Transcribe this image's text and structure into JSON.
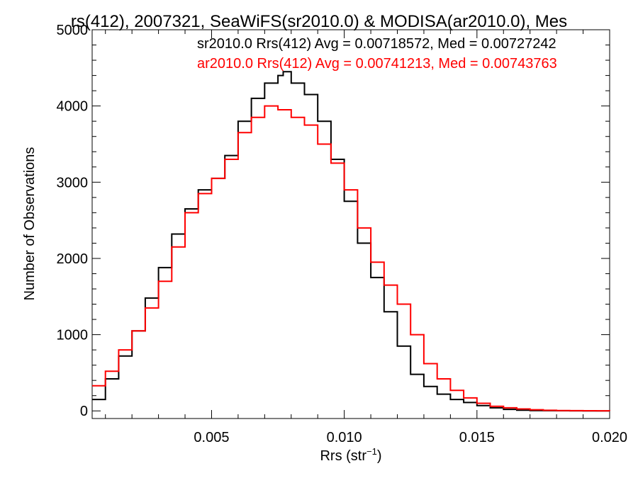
{
  "chart_data": {
    "type": "line",
    "title": "rs(412), 2007321, SeaWiFS(sr2010.0) & MODISA(ar2010.0), Mes",
    "xlabel": "Rrs (str",
    "xlabel_superscript": "−1",
    "xlabel_suffix": ")",
    "ylabel": "Number of Observations",
    "xlim": [
      0.0005,
      0.02
    ],
    "ylim": [
      -100,
      5000
    ],
    "x_ticks": [
      0.005,
      0.01,
      0.015,
      0.02
    ],
    "x_tick_labels": [
      "0.005",
      "0.010",
      "0.015",
      "0.020"
    ],
    "y_ticks": [
      0,
      1000,
      2000,
      3000,
      4000,
      5000
    ],
    "y_tick_labels": [
      "0",
      "1000",
      "2000",
      "3000",
      "4000",
      "5000"
    ],
    "grid": false,
    "legend_placement": "top-right",
    "series": [
      {
        "name": "sr2010.0",
        "legend_text": "sr2010.0 Rrs(412) Avg = 0.00718572, Med = 0.00727242",
        "color": "#000000",
        "x": [
          0.0005,
          0.001,
          0.0015,
          0.002,
          0.0025,
          0.003,
          0.0035,
          0.004,
          0.0045,
          0.005,
          0.0055,
          0.006,
          0.0065,
          0.007,
          0.0075,
          0.0077,
          0.008,
          0.0085,
          0.009,
          0.0095,
          0.01,
          0.0105,
          0.011,
          0.0115,
          0.012,
          0.0125,
          0.013,
          0.0135,
          0.014,
          0.0145,
          0.015,
          0.0155,
          0.016,
          0.0165,
          0.017,
          0.0175,
          0.018,
          0.0185,
          0.019,
          0.0195,
          0.02
        ],
        "y": [
          150,
          420,
          720,
          1050,
          1480,
          1880,
          2320,
          2650,
          2900,
          3050,
          3350,
          3800,
          4100,
          4300,
          4400,
          4450,
          4300,
          4150,
          3800,
          3300,
          2750,
          2200,
          1750,
          1300,
          850,
          480,
          320,
          220,
          150,
          110,
          70,
          40,
          20,
          10,
          5,
          3,
          2,
          1,
          0,
          0,
          0
        ]
      },
      {
        "name": "ar2010.0",
        "legend_text": "ar2010.0 Rrs(412) Avg = 0.00741213, Med = 0.00743763",
        "color": "#ff0000",
        "x": [
          0.0005,
          0.001,
          0.0015,
          0.002,
          0.0025,
          0.003,
          0.0035,
          0.004,
          0.0045,
          0.005,
          0.0055,
          0.006,
          0.0065,
          0.007,
          0.0075,
          0.008,
          0.0085,
          0.009,
          0.0095,
          0.01,
          0.0105,
          0.011,
          0.0115,
          0.012,
          0.0125,
          0.013,
          0.0135,
          0.014,
          0.0145,
          0.015,
          0.0155,
          0.016,
          0.0165,
          0.017,
          0.0175,
          0.018,
          0.0185,
          0.019,
          0.0195,
          0.02
        ],
        "y": [
          330,
          520,
          800,
          1050,
          1350,
          1700,
          2150,
          2600,
          2850,
          3050,
          3300,
          3650,
          3850,
          4000,
          3950,
          3850,
          3750,
          3500,
          3250,
          2900,
          2400,
          1950,
          1650,
          1400,
          1000,
          620,
          420,
          270,
          170,
          100,
          60,
          40,
          25,
          15,
          8,
          5,
          3,
          2,
          1,
          0
        ]
      }
    ]
  }
}
